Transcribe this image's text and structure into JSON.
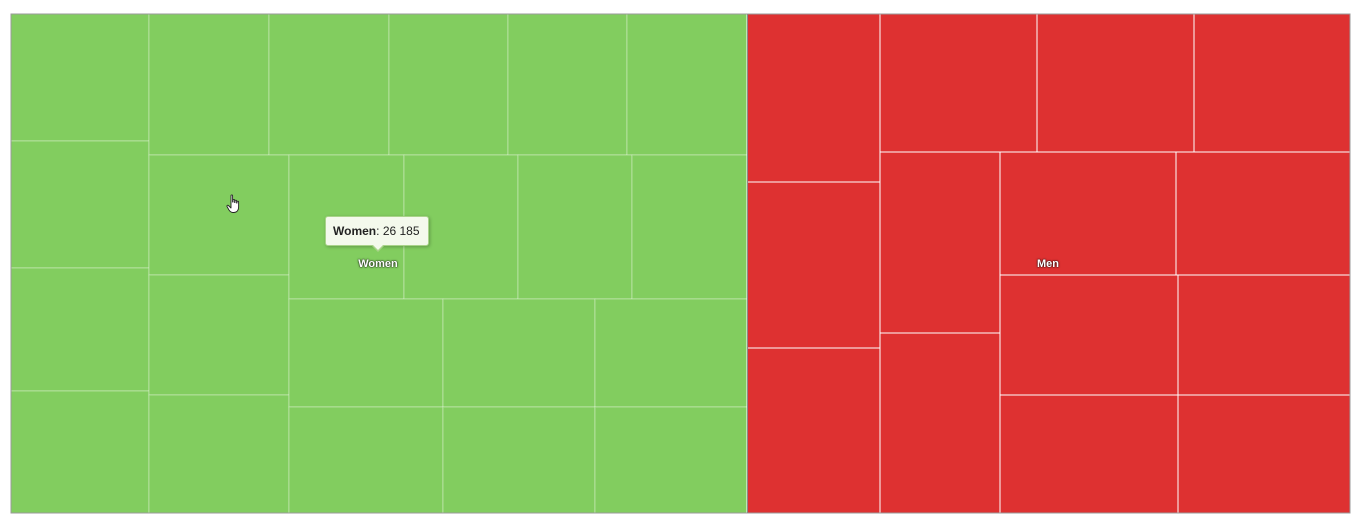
{
  "chart_data": {
    "type": "treemap",
    "title": "",
    "groups": [
      {
        "name": "Women",
        "value": 26185,
        "color": "#82cd5f",
        "label_color": "#ffffff"
      },
      {
        "name": "Men",
        "value": 21300,
        "color": "#de3131",
        "label_color": "#ffffff"
      }
    ],
    "cell_border_color": "#ffffff"
  },
  "tooltip": {
    "series": "Women",
    "separator": ":",
    "value_text": "26 185"
  },
  "cursor": {
    "icon": "hand-pointer-icon"
  }
}
